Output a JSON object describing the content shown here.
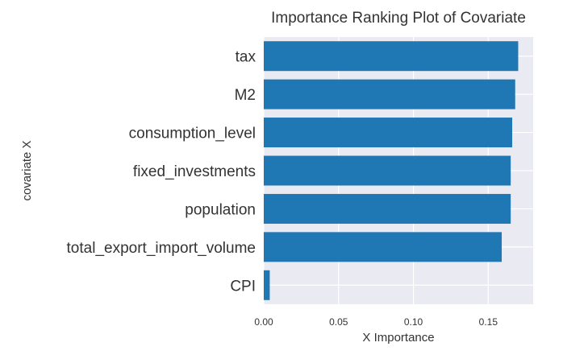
{
  "chart_data": {
    "type": "bar",
    "orientation": "horizontal",
    "title": "Importance Ranking Plot of Covariate",
    "xlabel": "X Importance",
    "ylabel": "covariate X",
    "categories": [
      "tax",
      "M2",
      "consumption_level",
      "fixed_investments",
      "population",
      "total_export_import_volume",
      "CPI"
    ],
    "values": [
      0.17,
      0.168,
      0.166,
      0.165,
      0.165,
      0.159,
      0.004
    ],
    "xlim": [
      0,
      0.18
    ],
    "xticks": [
      0.0,
      0.05,
      0.1,
      0.15
    ],
    "xtick_labels": [
      "0.00",
      "0.05",
      "0.10",
      "0.15"
    ],
    "grid": true,
    "colors": {
      "bar": "#1f77b4",
      "plot_background": "#eaeaf2",
      "grid": "#ffffff",
      "text": "#333333"
    }
  }
}
